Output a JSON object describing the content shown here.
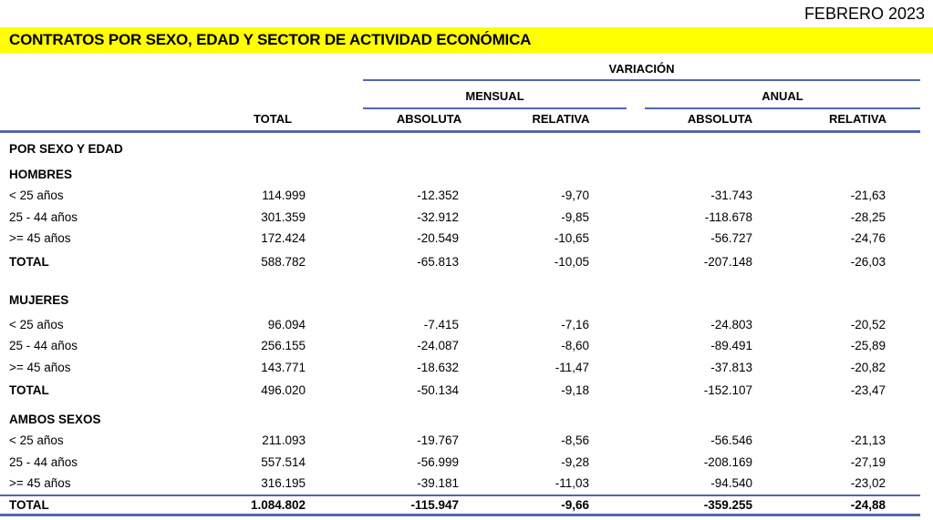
{
  "header": {
    "date": "FEBRERO 2023",
    "title": "CONTRATOS POR SEXO, EDAD Y SECTOR DE ACTIVIDAD ECONÓMICA"
  },
  "table": {
    "col_headers": {
      "total": "TOTAL",
      "variacion": "VARIACIÓN",
      "mensual": "MENSUAL",
      "anual": "ANUAL",
      "mensual_absoluta": "ABSOLUTA",
      "mensual_relativa": "RELATIVA",
      "anual_absoluta": "ABSOLUTA",
      "anual_relativa": "RELATIVA"
    },
    "section_title": "POR SEXO Y EDAD",
    "groups": [
      {
        "name": "HOMBRES",
        "rows": [
          {
            "label": "< 25 años",
            "total": "114.999",
            "mensual_abs": "-12.352",
            "mensual_rel": "-9,70",
            "anual_abs": "-31.743",
            "anual_rel": "-21,63"
          },
          {
            "label": "25 - 44 años",
            "total": "301.359",
            "mensual_abs": "-32.912",
            "mensual_rel": "-9,85",
            "anual_abs": "-118.678",
            "anual_rel": "-28,25"
          },
          {
            "label": ">= 45 años",
            "total": "172.424",
            "mensual_abs": "-20.549",
            "mensual_rel": "-10,65",
            "anual_abs": "-56.727",
            "anual_rel": "-24,76"
          }
        ],
        "total_row": {
          "label": "TOTAL",
          "total": "588.782",
          "mensual_abs": "-65.813",
          "mensual_rel": "-10,05",
          "anual_abs": "-207.148",
          "anual_rel": "-26,03"
        }
      },
      {
        "name": "MUJERES",
        "rows": [
          {
            "label": "< 25 años",
            "total": "96.094",
            "mensual_abs": "-7.415",
            "mensual_rel": "-7,16",
            "anual_abs": "-24.803",
            "anual_rel": "-20,52"
          },
          {
            "label": "25 - 44 años",
            "total": "256.155",
            "mensual_abs": "-24.087",
            "mensual_rel": "-8,60",
            "anual_abs": "-89.491",
            "anual_rel": "-25,89"
          },
          {
            "label": ">= 45 años",
            "total": "143.771",
            "mensual_abs": "-18.632",
            "mensual_rel": "-11,47",
            "anual_abs": "-37.813",
            "anual_rel": "-20,82"
          }
        ],
        "total_row": {
          "label": "TOTAL",
          "total": "496.020",
          "mensual_abs": "-50.134",
          "mensual_rel": "-9,18",
          "anual_abs": "-152.107",
          "anual_rel": "-23,47"
        }
      },
      {
        "name": "AMBOS SEXOS",
        "rows": [
          {
            "label": "< 25 años",
            "total": "211.093",
            "mensual_abs": "-19.767",
            "mensual_rel": "-8,56",
            "anual_abs": "-56.546",
            "anual_rel": "-21,13"
          },
          {
            "label": "25 - 44 años",
            "total": "557.514",
            "mensual_abs": "-56.999",
            "mensual_rel": "-9,28",
            "anual_abs": "-208.169",
            "anual_rel": "-27,19"
          },
          {
            "label": ">= 45 años",
            "total": "316.195",
            "mensual_abs": "-39.181",
            "mensual_rel": "-11,03",
            "anual_abs": "-94.540",
            "anual_rel": "-23,02"
          }
        ]
      }
    ],
    "grand_total": {
      "label": "TOTAL",
      "total": "1.084.802",
      "mensual_abs": "-115.947",
      "mensual_rel": "-9,66",
      "anual_abs": "-359.255",
      "anual_rel": "-24,88"
    }
  },
  "colors": {
    "accent_line": "#5467ad",
    "banner_bg": "#ffff00"
  }
}
